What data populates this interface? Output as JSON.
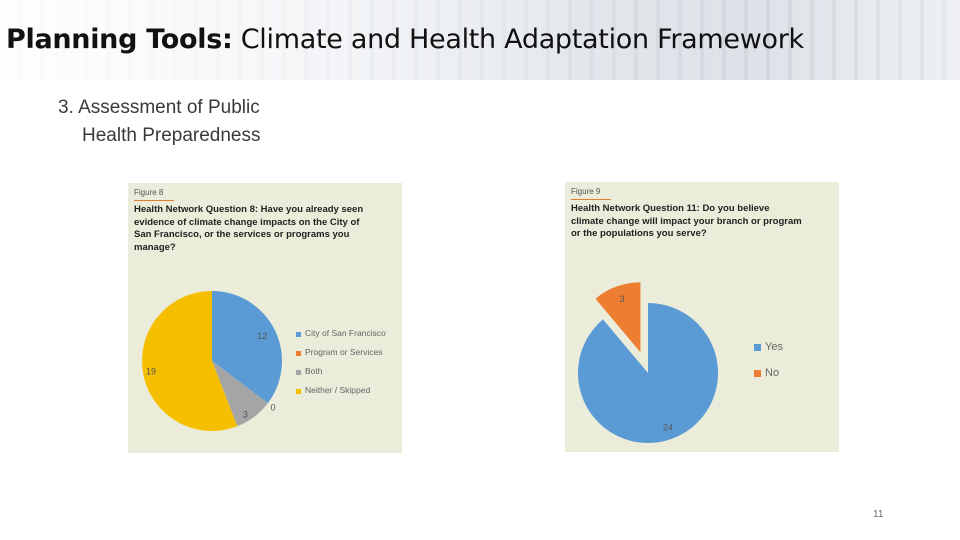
{
  "header": {
    "title_bold": "Planning Tools:",
    "title_rest": " Climate and Health Adaptation Framework"
  },
  "subtitle": {
    "line1": "3. Assessment of Public",
    "line2": "Health Preparedness"
  },
  "page_number": "11",
  "chart_data": [
    {
      "type": "pie",
      "figure_label": "Figure 8",
      "title": "Health Network Question 8: Have you already seen evidence of climate change impacts on the City of San Francisco, or the services or programs you manage?",
      "categories": [
        "City of San Francisco",
        "Program or Services",
        "Both",
        "Neither / Skipped"
      ],
      "values": [
        12,
        0,
        3,
        19
      ],
      "data_labels": [
        "12",
        "0",
        "3",
        "19"
      ],
      "colors": [
        "#5b9bd5",
        "#ed7d31",
        "#a5a5a5",
        "#f5bf00"
      ],
      "legend_placement": "right"
    },
    {
      "type": "pie",
      "figure_label": "Figure 9",
      "title": "Health Network Question 11: Do you believe climate change will impact your branch or program or the populations you serve?",
      "categories": [
        "Yes",
        "No"
      ],
      "values": [
        24,
        3
      ],
      "data_labels": [
        "24",
        "3"
      ],
      "colors": [
        "#5b9bd5",
        "#ed7d31"
      ],
      "exploded": [
        false,
        true
      ],
      "legend_placement": "right"
    }
  ]
}
